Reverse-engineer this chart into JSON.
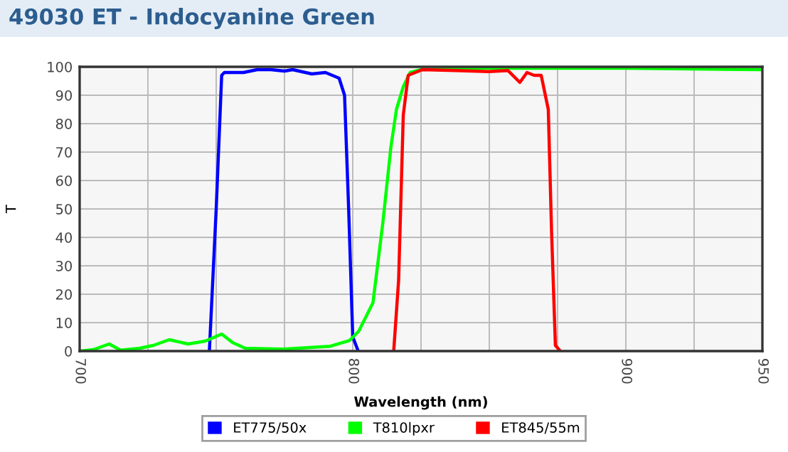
{
  "chart_data": {
    "type": "line",
    "title": "49030 ET - Indocyanine Green",
    "xlabel": "Wavelength (nm)",
    "ylabel": "T",
    "xlim": [
      700,
      950
    ],
    "xticks": [
      700,
      {
        "value": 725,
        "label": null
      },
      {
        "value": 750,
        "label": null
      },
      {
        "value": 775,
        "label": null
      },
      800,
      {
        "value": 825,
        "label": null
      },
      {
        "value": 850,
        "label": null
      },
      {
        "value": 875,
        "label": null
      },
      900,
      {
        "value": 925,
        "label": null
      },
      950
    ],
    "ylim": [
      0,
      100
    ],
    "yticks": [
      0,
      10,
      20,
      30,
      40,
      50,
      60,
      70,
      80,
      90,
      100
    ],
    "grid": true,
    "legend": "bottom",
    "marker": "none",
    "line_style": "solid",
    "series": [
      {
        "name": "ET775/50x",
        "color": "#0000ff",
        "x": [
          747.5,
          750,
          752,
          753,
          760,
          765,
          770,
          775,
          778,
          785,
          790,
          795,
          797,
          798.5,
          800,
          802
        ],
        "values": [
          0,
          50,
          97,
          98,
          98,
          99,
          99,
          98.5,
          99,
          97.5,
          98,
          96,
          90,
          50,
          5,
          0
        ]
      },
      {
        "name": "T810lpxr",
        "color": "#00ff00",
        "x": [
          700,
          705,
          710.8,
          715,
          722,
          727,
          732.8,
          739.7,
          746,
          752,
          756,
          760.6,
          774.5,
          791.8,
          798.8,
          802.2,
          807.4,
          811,
          814,
          816,
          818.5,
          821,
          825,
          850,
          900,
          950
        ],
        "values": [
          0,
          0.5,
          2.5,
          0.3,
          1,
          2,
          4,
          2.5,
          3.5,
          6,
          3,
          1,
          0.7,
          1.7,
          3.7,
          7,
          17,
          45,
          72,
          85,
          93,
          98,
          99,
          99.5,
          99.5,
          99
        ]
      },
      {
        "name": "ET845/55m",
        "color": "#ff0000",
        "x": [
          815,
          816.8,
          818.5,
          820.3,
          825.5,
          837.7,
          849.8,
          856.8,
          861.2,
          863.8,
          866.4,
          869,
          871.6,
          872.8,
          874.2,
          876
        ],
        "values": [
          0,
          25,
          83,
          97,
          99,
          98.7,
          98.3,
          98.7,
          94.5,
          98,
          97,
          97,
          85,
          42,
          2,
          0
        ]
      }
    ]
  }
}
